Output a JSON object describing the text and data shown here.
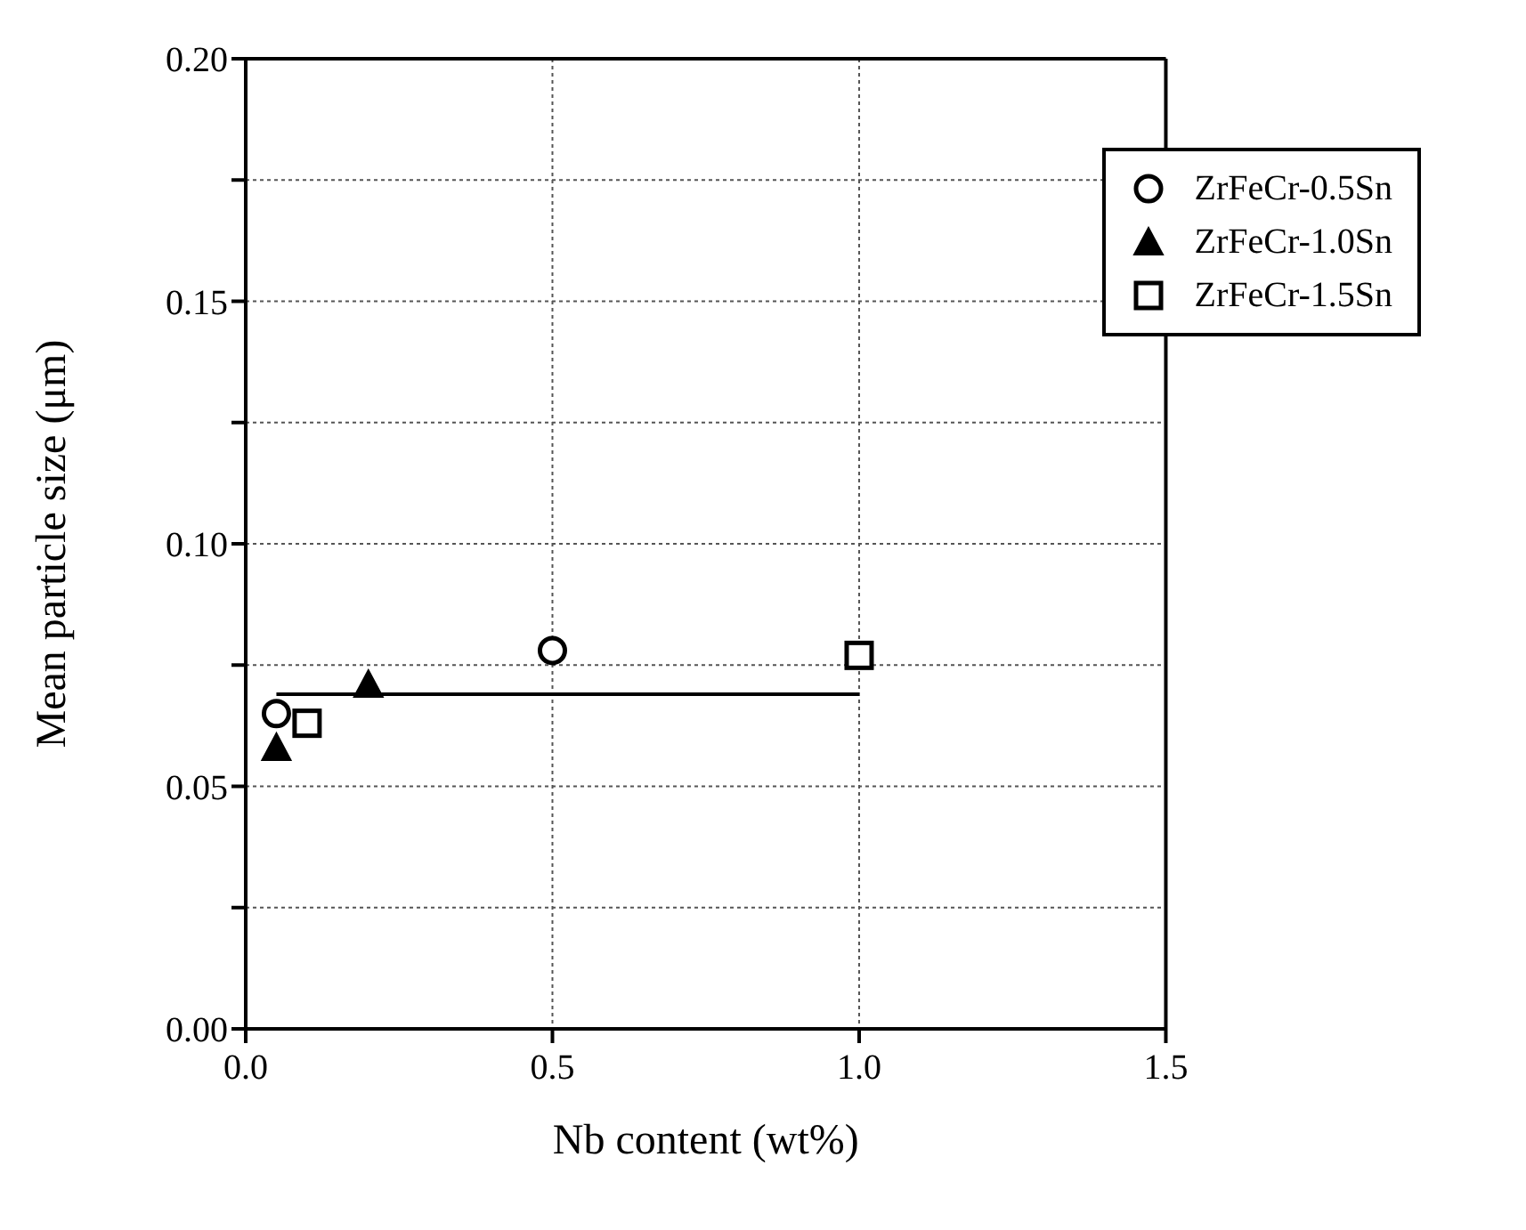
{
  "chart_data": {
    "type": "scatter",
    "xlabel": "Nb content (wt%)",
    "ylabel": "Mean particle size (μm)",
    "xlim": [
      0,
      1.5
    ],
    "xticks": [
      {
        "value": 0,
        "label": "0.0"
      },
      0.5,
      {
        "value": 1,
        "label": "1.0"
      },
      1.5
    ],
    "ylim": [
      0,
      0.2
    ],
    "yticks": [
      {
        "value": 0,
        "label": "0.00"
      },
      {
        "value": 0.025,
        "label": null
      },
      0.05,
      {
        "value": 0.075,
        "label": null
      },
      {
        "value": 0.1,
        "label": "0.10"
      },
      {
        "value": 0.125,
        "label": null
      },
      0.15,
      {
        "value": 0.175,
        "label": null
      },
      {
        "value": 0.2,
        "label": "0.20"
      }
    ],
    "grid": true,
    "legend": "top right",
    "series": [
      {
        "name": "ZrFeCr-0.5Sn",
        "color": "#000000",
        "marker": "circle",
        "x": [
          0.05,
          0.5
        ],
        "values": [
          0.065,
          0.078
        ]
      },
      {
        "name": "ZrFeCr-1.0Sn",
        "color": "#000000",
        "marker": "triangle",
        "x": [
          0.05,
          0.2
        ],
        "values": [
          0.058,
          0.071
        ]
      },
      {
        "name": "ZrFeCr-1.5Sn",
        "color": "#000000",
        "marker": "square",
        "x": [
          0.1,
          1.0
        ],
        "values": [
          0.063,
          0.077
        ]
      },
      {
        "type": "line",
        "color": "#000000",
        "marker": "none",
        "x": [
          0.05,
          1.0
        ],
        "values": [
          0.069,
          0.069
        ]
      }
    ]
  }
}
